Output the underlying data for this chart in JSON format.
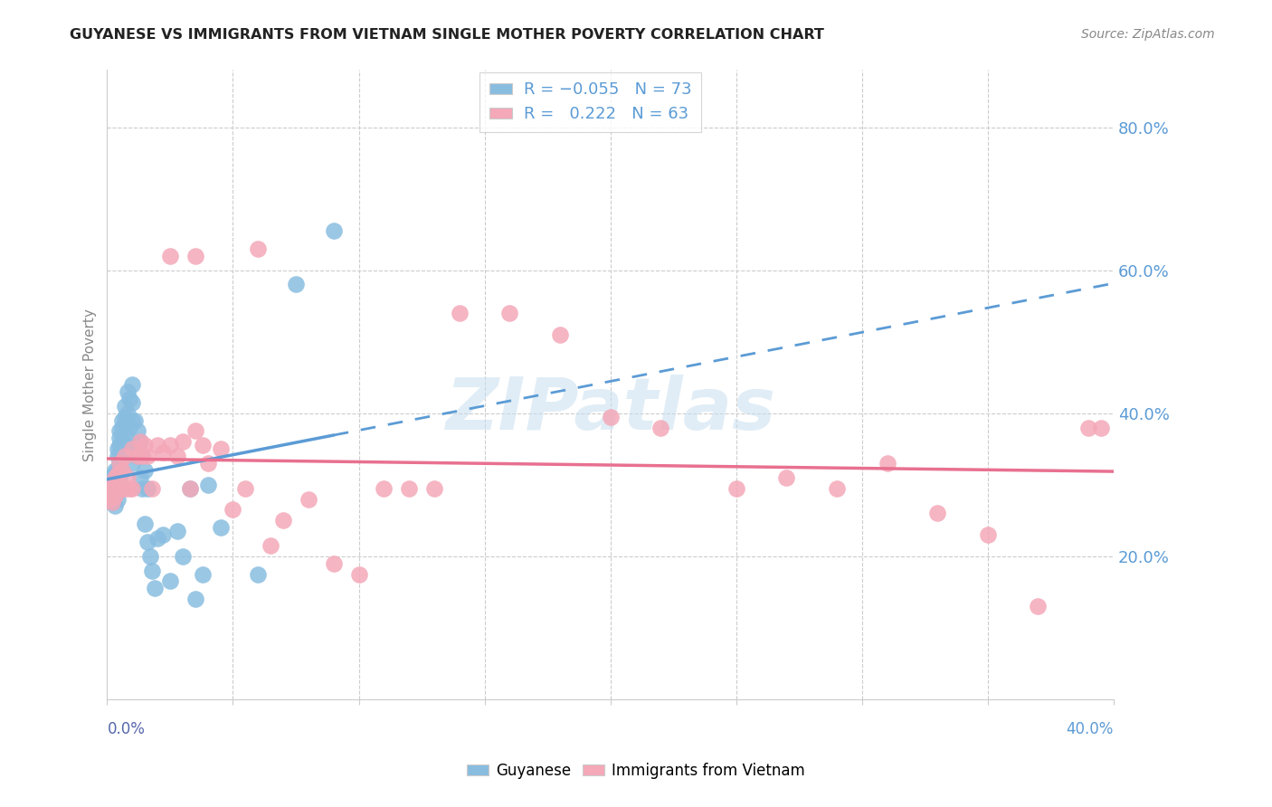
{
  "title": "GUYANESE VS IMMIGRANTS FROM VIETNAM SINGLE MOTHER POVERTY CORRELATION CHART",
  "source": "Source: ZipAtlas.com",
  "ylabel": "Single Mother Poverty",
  "right_ytick_labels": [
    "20.0%",
    "40.0%",
    "60.0%",
    "80.0%"
  ],
  "right_ytick_vals": [
    0.2,
    0.4,
    0.6,
    0.8
  ],
  "xlim": [
    0.0,
    0.4
  ],
  "ylim": [
    0.0,
    0.88
  ],
  "guyanese_color": "#89bde0",
  "vietnam_color": "#f4a8b8",
  "trendline_blue_color": "#5b9bd5",
  "trendline_pink_color": "#e87090",
  "watermark_color": "#c8dff0",
  "R_guyanese": -0.055,
  "N_guyanese": 73,
  "R_vietnam": 0.222,
  "N_vietnam": 63,
  "guyanese_x": [
    0.001,
    0.001,
    0.001,
    0.001,
    0.001,
    0.002,
    0.002,
    0.002,
    0.002,
    0.002,
    0.002,
    0.003,
    0.003,
    0.003,
    0.003,
    0.003,
    0.003,
    0.003,
    0.004,
    0.004,
    0.004,
    0.004,
    0.004,
    0.005,
    0.005,
    0.005,
    0.005,
    0.005,
    0.006,
    0.006,
    0.006,
    0.006,
    0.007,
    0.007,
    0.007,
    0.007,
    0.008,
    0.008,
    0.008,
    0.009,
    0.009,
    0.01,
    0.01,
    0.01,
    0.01,
    0.011,
    0.011,
    0.012,
    0.012,
    0.013,
    0.013,
    0.014,
    0.014,
    0.015,
    0.015,
    0.016,
    0.016,
    0.017,
    0.018,
    0.019,
    0.02,
    0.022,
    0.025,
    0.028,
    0.03,
    0.033,
    0.035,
    0.038,
    0.04,
    0.045,
    0.06,
    0.075,
    0.09
  ],
  "guyanese_y": [
    0.295,
    0.31,
    0.295,
    0.29,
    0.285,
    0.305,
    0.295,
    0.3,
    0.28,
    0.29,
    0.275,
    0.315,
    0.32,
    0.295,
    0.3,
    0.29,
    0.285,
    0.27,
    0.34,
    0.35,
    0.32,
    0.295,
    0.28,
    0.375,
    0.365,
    0.355,
    0.33,
    0.31,
    0.39,
    0.38,
    0.36,
    0.295,
    0.41,
    0.395,
    0.37,
    0.35,
    0.43,
    0.4,
    0.355,
    0.42,
    0.38,
    0.44,
    0.415,
    0.39,
    0.33,
    0.39,
    0.355,
    0.375,
    0.34,
    0.36,
    0.31,
    0.34,
    0.295,
    0.32,
    0.245,
    0.295,
    0.22,
    0.2,
    0.18,
    0.155,
    0.225,
    0.23,
    0.165,
    0.235,
    0.2,
    0.295,
    0.14,
    0.175,
    0.3,
    0.24,
    0.175,
    0.58,
    0.655
  ],
  "vietnam_x": [
    0.001,
    0.001,
    0.002,
    0.002,
    0.002,
    0.003,
    0.003,
    0.003,
    0.004,
    0.004,
    0.005,
    0.005,
    0.006,
    0.006,
    0.007,
    0.007,
    0.008,
    0.009,
    0.01,
    0.01,
    0.012,
    0.013,
    0.014,
    0.015,
    0.016,
    0.018,
    0.02,
    0.022,
    0.025,
    0.028,
    0.03,
    0.033,
    0.035,
    0.038,
    0.04,
    0.045,
    0.05,
    0.055,
    0.06,
    0.065,
    0.07,
    0.08,
    0.09,
    0.1,
    0.11,
    0.12,
    0.13,
    0.14,
    0.16,
    0.18,
    0.2,
    0.22,
    0.25,
    0.27,
    0.29,
    0.31,
    0.33,
    0.35,
    0.37,
    0.39,
    0.395,
    0.025,
    0.035
  ],
  "vietnam_y": [
    0.295,
    0.28,
    0.3,
    0.29,
    0.275,
    0.31,
    0.295,
    0.285,
    0.315,
    0.295,
    0.33,
    0.295,
    0.32,
    0.295,
    0.34,
    0.295,
    0.31,
    0.295,
    0.35,
    0.295,
    0.34,
    0.36,
    0.34,
    0.355,
    0.34,
    0.295,
    0.355,
    0.345,
    0.355,
    0.34,
    0.36,
    0.295,
    0.375,
    0.355,
    0.33,
    0.35,
    0.265,
    0.295,
    0.63,
    0.215,
    0.25,
    0.28,
    0.19,
    0.175,
    0.295,
    0.295,
    0.295,
    0.54,
    0.54,
    0.51,
    0.395,
    0.38,
    0.295,
    0.31,
    0.295,
    0.33,
    0.26,
    0.23,
    0.13,
    0.38,
    0.38,
    0.62,
    0.62
  ]
}
